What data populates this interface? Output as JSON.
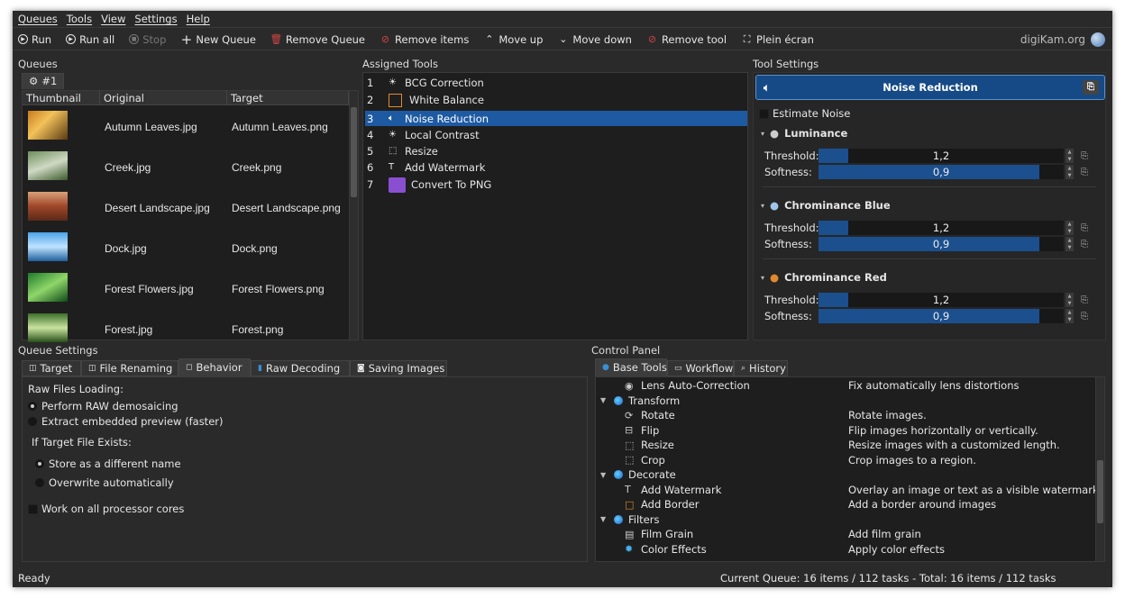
{
  "menu": [
    "Queues",
    "Tools",
    "View",
    "Settings",
    "Help"
  ],
  "toolbar": {
    "run": "Run",
    "run_all": "Run all",
    "stop": "Stop",
    "new_queue": "New Queue",
    "remove_queue": "Remove Queue",
    "remove_items": "Remove items",
    "move_up": "Move up",
    "move_down": "Move down",
    "remove_tool": "Remove tool",
    "fullscreen": "Plein écran"
  },
  "brand": "digiKam.org",
  "queues": {
    "label": "Queues",
    "tab": "#1",
    "columns": [
      "Thumbnail",
      "Original",
      "Target"
    ],
    "rows": [
      {
        "original": "Autumn Leaves.jpg",
        "target": "Autumn Leaves.png"
      },
      {
        "original": "Creek.jpg",
        "target": "Creek.png"
      },
      {
        "original": "Desert Landscape.jpg",
        "target": "Desert Landscape.png"
      },
      {
        "original": "Dock.jpg",
        "target": "Dock.png"
      },
      {
        "original": "Forest Flowers.jpg",
        "target": "Forest Flowers.png"
      },
      {
        "original": "Forest.jpg",
        "target": "Forest.png"
      }
    ]
  },
  "assigned": {
    "label": "Assigned Tools",
    "tools": [
      {
        "n": "1",
        "name": "BCG Correction"
      },
      {
        "n": "2",
        "name": "White Balance"
      },
      {
        "n": "3",
        "name": "Noise Reduction"
      },
      {
        "n": "4",
        "name": "Local Contrast"
      },
      {
        "n": "5",
        "name": "Resize"
      },
      {
        "n": "6",
        "name": "Add Watermark"
      },
      {
        "n": "7",
        "name": "Convert To PNG"
      }
    ],
    "selected": "3"
  },
  "tool_settings": {
    "label": "Tool Settings",
    "title": "Noise Reduction",
    "estimate": "Estimate Noise",
    "sections": [
      {
        "name": "Luminance",
        "threshold_label": "Threshold:",
        "threshold": "1,2",
        "threshold_fill": 0.12,
        "softness_label": "Softness:",
        "softness": "0,9",
        "softness_fill": 0.9
      },
      {
        "name": "Chrominance Blue",
        "threshold_label": "Threshold:",
        "threshold": "1,2",
        "threshold_fill": 0.12,
        "softness_label": "Softness:",
        "softness": "0,9",
        "softness_fill": 0.9
      },
      {
        "name": "Chrominance Red",
        "threshold_label": "Threshold:",
        "threshold": "1,2",
        "threshold_fill": 0.12,
        "softness_label": "Softness:",
        "softness": "0,9",
        "softness_fill": 0.9
      }
    ]
  },
  "queue_settings": {
    "label": "Queue Settings",
    "tabs": [
      "Target",
      "File Renaming",
      "Behavior",
      "Raw Decoding",
      "Saving Images"
    ],
    "active_tab": "Behavior",
    "raw_label": "Raw Files Loading:",
    "raw_opt1": "Perform RAW demosaicing",
    "raw_opt2": "Extract embedded preview (faster)",
    "exists_label": "If Target File Exists:",
    "exists_opt1": "Store as a different name",
    "exists_opt2": "Overwrite automatically",
    "cores": "Work on all processor cores"
  },
  "control_panel": {
    "label": "Control Panel",
    "tabs": [
      "Base Tools",
      "Workflow",
      "History"
    ],
    "active_tab": "Base Tools",
    "items": [
      {
        "type": "tool",
        "name": "Lens Auto-Correction",
        "desc": "Fix automatically lens distortions",
        "icon": "◉"
      },
      {
        "type": "group",
        "name": "Transform"
      },
      {
        "type": "tool",
        "name": "Rotate",
        "desc": "Rotate images.",
        "icon": "⟳"
      },
      {
        "type": "tool",
        "name": "Flip",
        "desc": "Flip images horizontally or vertically.",
        "icon": "⊟"
      },
      {
        "type": "tool",
        "name": "Resize",
        "desc": "Resize images with a customized length.",
        "icon": "⬚"
      },
      {
        "type": "tool",
        "name": "Crop",
        "desc": "Crop images to a region.",
        "icon": "⬚"
      },
      {
        "type": "group",
        "name": "Decorate"
      },
      {
        "type": "tool",
        "name": "Add Watermark",
        "desc": "Overlay an image or text as a visible watermark",
        "icon": "T"
      },
      {
        "type": "tool",
        "name": "Add Border",
        "desc": "Add a border around images",
        "icon": "□"
      },
      {
        "type": "group",
        "name": "Filters"
      },
      {
        "type": "tool",
        "name": "Film Grain",
        "desc": "Add film grain",
        "icon": "▤"
      },
      {
        "type": "tool",
        "name": "Color Effects",
        "desc": "Apply color effects",
        "icon": "✹"
      }
    ]
  },
  "status": {
    "left": "Ready",
    "right": "Current Queue: 16 items / 112 tasks - Total: 16 items / 112 tasks"
  },
  "colors": {
    "accent": "#1d5aa2",
    "background": "#2a2a2a",
    "panel": "#1e1e1e"
  }
}
